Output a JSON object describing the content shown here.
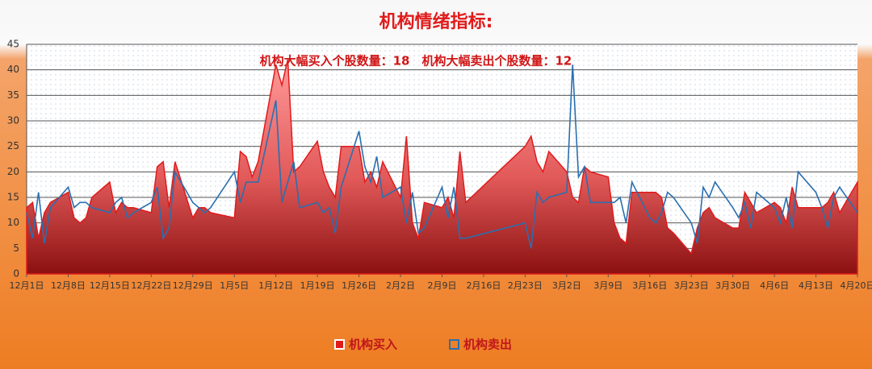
{
  "chart_data": {
    "type": "area-line",
    "title": "机构情绪指标:",
    "annotation": "机构大幅买入个股数量：18　机构大幅卖出个股数量：12",
    "x": [
      0,
      1,
      2,
      3,
      4,
      7,
      8,
      9,
      10,
      11,
      14,
      15,
      16,
      17,
      18,
      21,
      22,
      23,
      24,
      25,
      28,
      29,
      30,
      31,
      35,
      36,
      37,
      38,
      39,
      42,
      43,
      44,
      45,
      46,
      49,
      50,
      51,
      52,
      53,
      56,
      57,
      58,
      59,
      60,
      63,
      64,
      65,
      66,
      67,
      70,
      71,
      72,
      73,
      74,
      84,
      85,
      86,
      87,
      88,
      91,
      92,
      93,
      94,
      95,
      98,
      99,
      100,
      101,
      102,
      105,
      106,
      107,
      108,
      109,
      112,
      113,
      114,
      115,
      116,
      119,
      120,
      121,
      122,
      123,
      126,
      127,
      128,
      129,
      130,
      133,
      134,
      135,
      136,
      137,
      140
    ],
    "series": [
      {
        "name": "机构买入",
        "color": "#e01b1b",
        "fill": true,
        "values": [
          13,
          14,
          7,
          12,
          14,
          16,
          11,
          10,
          11,
          15,
          18,
          12,
          14,
          13,
          13,
          12,
          21,
          22,
          13,
          22,
          11,
          13,
          13,
          12,
          11,
          24,
          23,
          19,
          22,
          41,
          37,
          42,
          20,
          21,
          26,
          20,
          17,
          15,
          25,
          25,
          18,
          20,
          17,
          22,
          15,
          27,
          10,
          7,
          14,
          13,
          15,
          11,
          24,
          14,
          25,
          27,
          22,
          20,
          24,
          20,
          15,
          14,
          21,
          20,
          19,
          10,
          7,
          6,
          16,
          16,
          16,
          15,
          9,
          8,
          4,
          9,
          12,
          13,
          11,
          9,
          9,
          16,
          14,
          12,
          14,
          13,
          10,
          17,
          13,
          13,
          13,
          14,
          16,
          12,
          18
        ]
      },
      {
        "name": "机构卖出",
        "color": "#2a6fb0",
        "fill": false,
        "values": [
          12,
          7,
          16,
          6,
          13,
          17,
          13,
          14,
          14,
          13,
          12,
          14,
          15,
          11,
          12,
          14,
          17,
          7,
          9,
          20,
          14,
          13,
          12,
          13,
          20,
          14,
          18,
          18,
          18,
          34,
          14,
          18,
          22,
          13,
          14,
          12,
          13,
          8,
          17,
          28,
          21,
          18,
          23,
          15,
          17,
          10,
          16,
          8,
          9,
          17,
          11,
          17,
          7,
          7,
          10,
          5,
          16,
          14,
          15,
          16,
          41,
          19,
          21,
          14,
          14,
          14,
          15,
          10,
          18,
          11,
          10,
          12,
          16,
          15,
          10,
          6,
          17,
          15,
          18,
          13,
          11,
          14,
          9,
          16,
          13,
          10,
          15,
          9,
          20,
          16,
          13,
          9,
          15,
          17,
          12
        ]
      }
    ],
    "xlim": [
      0,
      140
    ],
    "xticks": [
      {
        "value": 0,
        "label": "12月1日"
      },
      {
        "value": 7,
        "label": "12月8日"
      },
      {
        "value": 14,
        "label": "12月15日"
      },
      {
        "value": 21,
        "label": "12月22日"
      },
      {
        "value": 28,
        "label": "12月29日"
      },
      {
        "value": 35,
        "label": "1月5日"
      },
      {
        "value": 42,
        "label": "1月12日"
      },
      {
        "value": 49,
        "label": "1月19日"
      },
      {
        "value": 56,
        "label": "1月26日"
      },
      {
        "value": 63,
        "label": "2月2日"
      },
      {
        "value": 70,
        "label": "2月9日"
      },
      {
        "value": 77,
        "label": "2月16日"
      },
      {
        "value": 84,
        "label": "2月23日"
      },
      {
        "value": 91,
        "label": "3月2日"
      },
      {
        "value": 98,
        "label": "3月9日"
      },
      {
        "value": 105,
        "label": "3月16日"
      },
      {
        "value": 112,
        "label": "3月23日"
      },
      {
        "value": 119,
        "label": "3月30日"
      },
      {
        "value": 126,
        "label": "4月6日"
      },
      {
        "value": 133,
        "label": "4月13日"
      },
      {
        "value": 140,
        "label": "4月20日"
      }
    ],
    "ylim": [
      0,
      45
    ],
    "yticks": [
      0,
      5,
      10,
      15,
      20,
      25,
      30,
      35,
      40,
      45
    ],
    "grid": true
  }
}
